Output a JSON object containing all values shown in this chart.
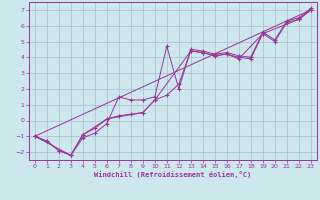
{
  "bg_color": "#cce8ed",
  "grid_color": "#b0b8cc",
  "line_color": "#993399",
  "marker": "+",
  "xlim": [
    -0.5,
    23.5
  ],
  "ylim": [
    -2.5,
    7.5
  ],
  "yticks": [
    -2,
    -1,
    0,
    1,
    2,
    3,
    4,
    5,
    6,
    7
  ],
  "xticks": [
    0,
    1,
    2,
    3,
    4,
    5,
    6,
    7,
    8,
    9,
    10,
    11,
    12,
    13,
    14,
    15,
    16,
    17,
    18,
    19,
    20,
    21,
    22,
    23
  ],
  "xlabel": "Windchill (Refroidissement éolien,°C)",
  "series1": [
    [
      0,
      -1.0
    ],
    [
      1,
      -1.3
    ],
    [
      2,
      -1.9
    ],
    [
      3,
      -2.2
    ],
    [
      4,
      -1.1
    ],
    [
      5,
      -0.8
    ],
    [
      6,
      -0.2
    ],
    [
      7,
      1.5
    ],
    [
      8,
      1.3
    ],
    [
      9,
      1.3
    ],
    [
      10,
      1.5
    ],
    [
      11,
      4.7
    ],
    [
      12,
      2.0
    ],
    [
      13,
      4.5
    ],
    [
      14,
      4.4
    ],
    [
      15,
      4.2
    ],
    [
      16,
      4.3
    ],
    [
      17,
      4.1
    ],
    [
      18,
      4.0
    ],
    [
      19,
      5.6
    ],
    [
      20,
      5.1
    ],
    [
      21,
      6.3
    ],
    [
      22,
      6.5
    ],
    [
      23,
      7.1
    ]
  ],
  "series2": [
    [
      0,
      -1.0
    ],
    [
      1,
      -1.3
    ],
    [
      2,
      -1.9
    ],
    [
      3,
      -2.2
    ],
    [
      4,
      -0.9
    ],
    [
      5,
      -0.5
    ],
    [
      6,
      0.1
    ],
    [
      7,
      0.3
    ],
    [
      8,
      0.4
    ],
    [
      9,
      0.5
    ],
    [
      10,
      1.3
    ],
    [
      11,
      1.6
    ],
    [
      12,
      2.3
    ],
    [
      13,
      4.4
    ],
    [
      14,
      4.3
    ],
    [
      15,
      4.1
    ],
    [
      16,
      4.2
    ],
    [
      17,
      4.0
    ],
    [
      18,
      3.9
    ],
    [
      19,
      5.5
    ],
    [
      20,
      5.0
    ],
    [
      21,
      6.2
    ],
    [
      22,
      6.4
    ],
    [
      23,
      7.0
    ]
  ],
  "series3": [
    [
      0,
      -1.0
    ],
    [
      3,
      -2.2
    ],
    [
      4,
      -0.9
    ],
    [
      6,
      0.1
    ],
    [
      9,
      0.5
    ],
    [
      10,
      1.3
    ],
    [
      13,
      4.4
    ],
    [
      14,
      4.3
    ],
    [
      15,
      4.1
    ],
    [
      16,
      4.2
    ],
    [
      17,
      3.9
    ],
    [
      19,
      5.5
    ],
    [
      22,
      6.4
    ],
    [
      23,
      7.0
    ]
  ]
}
